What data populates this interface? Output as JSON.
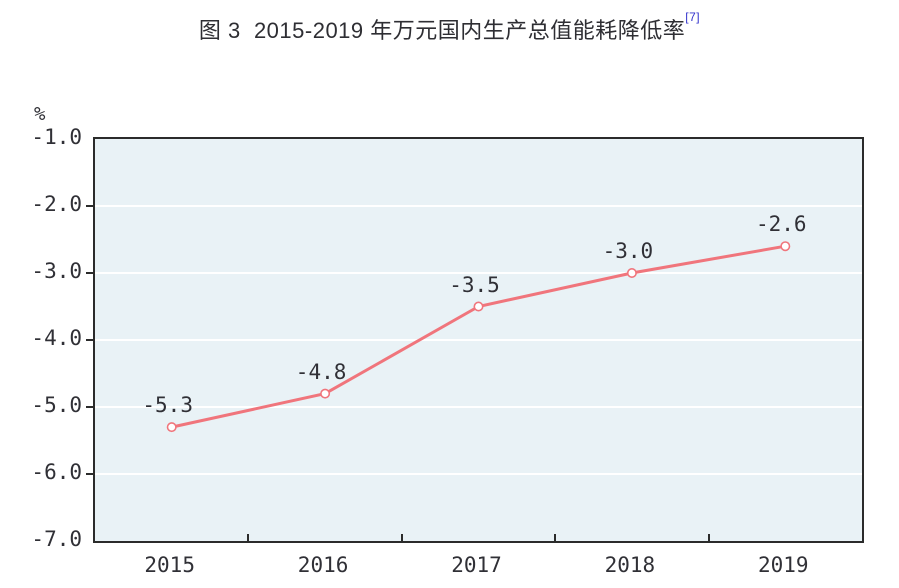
{
  "title": {
    "text": "图 3  2015-2019 年万元国内生产总值能耗降低率",
    "superscript": "[7]"
  },
  "chart_data": {
    "type": "line",
    "title": "图 3 2015-2019 年万元国内生产总值能耗降低率 [7]",
    "categories": [
      "2015",
      "2016",
      "2017",
      "2018",
      "2019"
    ],
    "values": [
      -5.3,
      -4.8,
      -3.5,
      -3.0,
      -2.6
    ],
    "data_labels": [
      "-5.3",
      "-4.8",
      "-3.5",
      "-3.0",
      "-2.6"
    ],
    "xlabel": "",
    "ylabel": "%",
    "y_tick_labels": [
      "-1.0",
      "-2.0",
      "-3.0",
      "-4.0",
      "-5.0",
      "-6.0",
      "-7.0"
    ],
    "ylim": [
      -7.0,
      -1.0
    ],
    "grid": true,
    "legend": "none",
    "colors": {
      "line": "#f0757c",
      "marker_fill": "#ffffff",
      "plot_background": "#e9f2f6",
      "gridline": "#ffffff",
      "axis": "#2b2b2b",
      "text": "#303036",
      "reference_blue": "#3333cc"
    }
  }
}
